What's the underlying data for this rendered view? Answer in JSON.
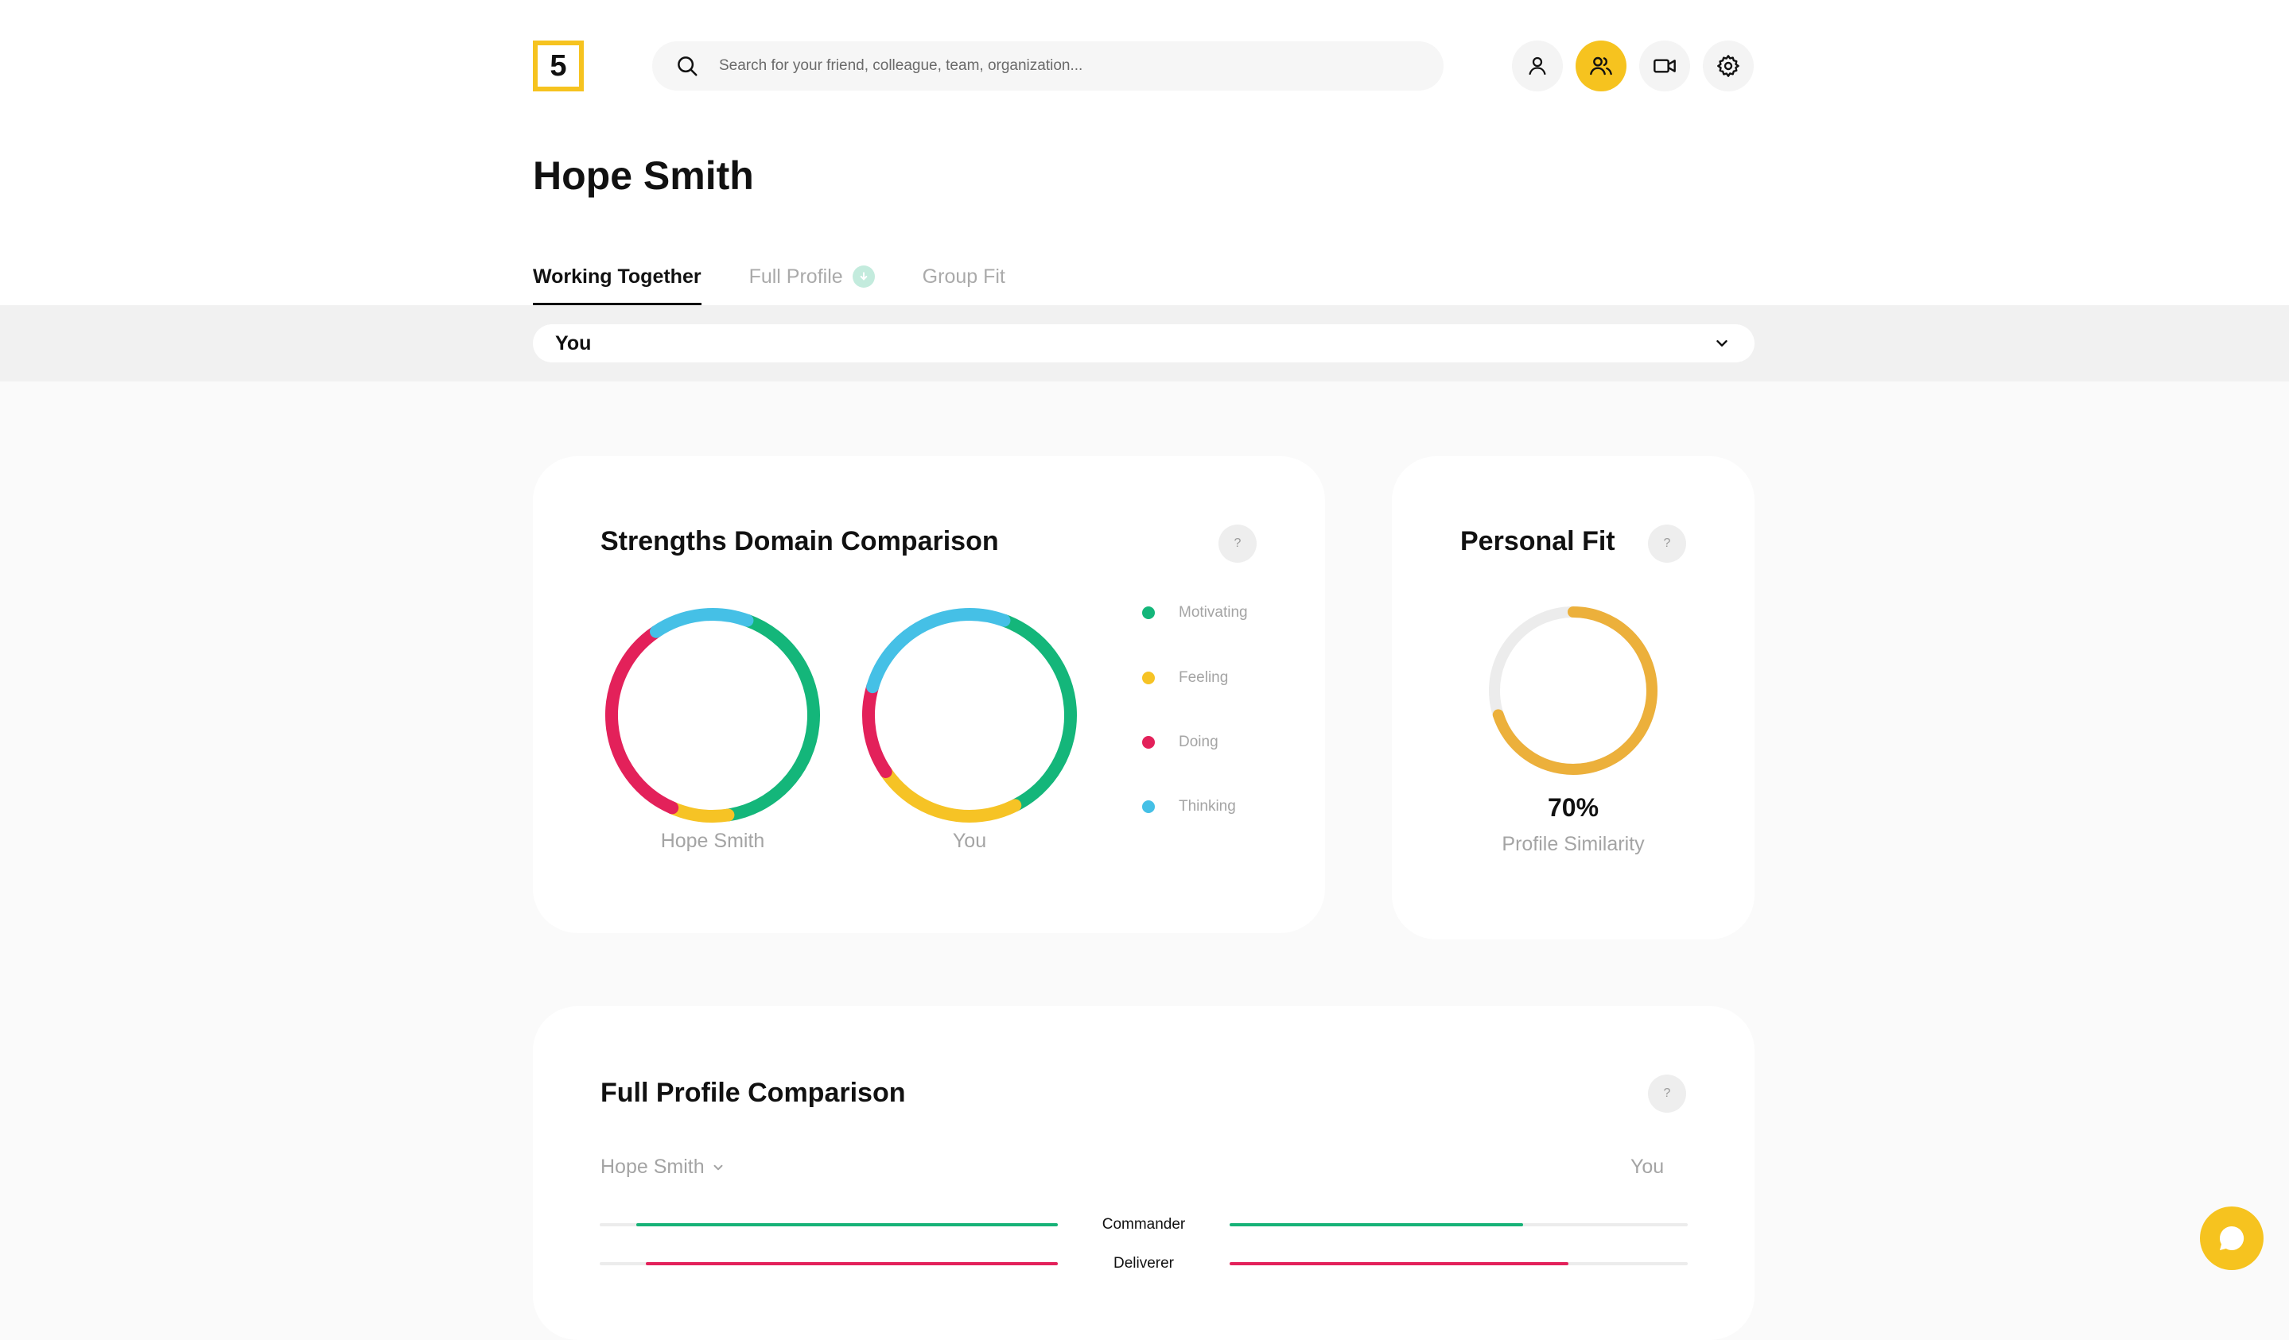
{
  "header": {
    "logo_text": "5",
    "search": {
      "placeholder": "Search for your friend, colleague, team, organization..."
    },
    "icons": [
      "person-icon",
      "people-icon",
      "video-icon",
      "gear-icon"
    ]
  },
  "profile": {
    "name": "Hope Smith"
  },
  "tabs": [
    {
      "label": "Working Together",
      "active": true
    },
    {
      "label": "Full Profile",
      "active": false
    },
    {
      "label": "Group Fit",
      "active": false
    }
  ],
  "compare_select": {
    "value": "You"
  },
  "strengths": {
    "title": "Strengths Domain Comparison",
    "help": "?",
    "legend": [
      {
        "label": "Motivating",
        "color": "#14b67a"
      },
      {
        "label": "Feeling",
        "color": "#f6c325"
      },
      {
        "label": "Doing",
        "color": "#e3215a"
      },
      {
        "label": "Thinking",
        "color": "#45c0e6"
      }
    ],
    "chart_data": [
      {
        "type": "pie",
        "name": "Hope Smith",
        "categories": [
          "Motivating",
          "Feeling",
          "Doing",
          "Thinking"
        ],
        "values": [
          42,
          9,
          34,
          15
        ]
      },
      {
        "type": "pie",
        "name": "You",
        "categories": [
          "Motivating",
          "Feeling",
          "Doing",
          "Thinking"
        ],
        "values": [
          37,
          23,
          14,
          26
        ]
      }
    ]
  },
  "personal_fit": {
    "title": "Personal Fit",
    "help": "?",
    "value": "70%",
    "percent": 70,
    "label": "Profile Similarity",
    "color": "#ecb03b"
  },
  "full_profile": {
    "title": "Full Profile Comparison",
    "help": "?",
    "left_person": "Hope Smith",
    "right_person": "You",
    "rows": [
      {
        "name": "Commander",
        "left": 0.92,
        "right": 0.64,
        "color": "#16b277"
      },
      {
        "name": "Deliverer",
        "left": 0.9,
        "right": 0.74,
        "color": "#e3215a"
      }
    ]
  }
}
